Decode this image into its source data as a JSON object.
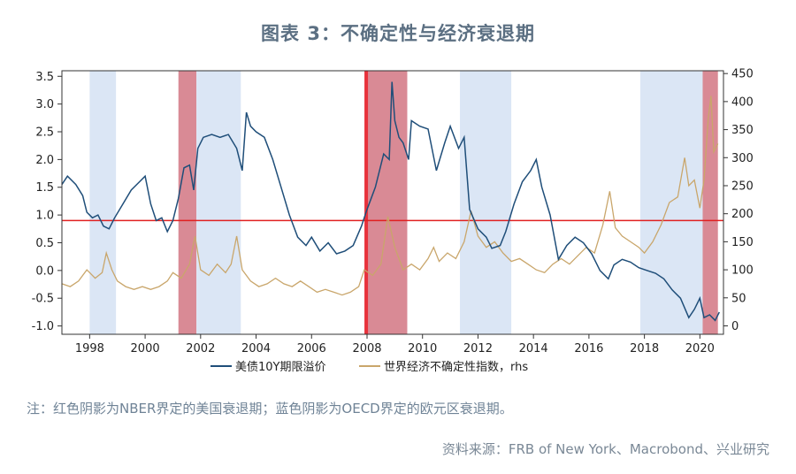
{
  "title": "图表 3：不确定性与经济衰退期",
  "note": "注：红色阴影为NBER界定的美国衰退期；蓝色阴影为OECD界定的欧元区衰退期。",
  "source": "资料来源：FRB of New York、Macrobond、兴业研究",
  "colors": {
    "spread": "#1f4e79",
    "uncertainty": "#c9a66b",
    "us_recession": "#d98a95",
    "euro_recession": "#dbe6f5",
    "reference_line": "#e02020"
  },
  "chart_data": {
    "type": "line",
    "x_range": [
      1997.0,
      2020.85
    ],
    "x_ticks": [
      1998,
      2000,
      2002,
      2004,
      2006,
      2008,
      2010,
      2012,
      2014,
      2016,
      2018,
      2020
    ],
    "y_left": {
      "range": [
        -1.15,
        3.6
      ],
      "ticks": [
        -1.0,
        -0.5,
        0.0,
        0.5,
        1.0,
        1.5,
        2.0,
        2.5,
        3.0,
        3.5
      ]
    },
    "y_right": {
      "range": [
        -15,
        455
      ],
      "ticks": [
        0,
        50,
        100,
        150,
        200,
        250,
        300,
        350,
        400,
        450
      ],
      "label": "rhs"
    },
    "horizontal_line": {
      "axis": "left",
      "value": 0.9
    },
    "shaded_periods": [
      {
        "type": "euro",
        "from": 1998.0,
        "to": 1998.95
      },
      {
        "type": "us",
        "from": 2001.2,
        "to": 2001.85
      },
      {
        "type": "euro",
        "from": 2001.85,
        "to": 2003.45
      },
      {
        "type": "us",
        "from": 2007.95,
        "to": 2009.45
      },
      {
        "type": "euro",
        "from": 2011.35,
        "to": 2013.2
      },
      {
        "type": "euro",
        "from": 2017.85,
        "to": 2020.1
      },
      {
        "type": "us",
        "from": 2020.1,
        "to": 2020.65
      }
    ],
    "series": [
      {
        "name": "美债10Y期限溢价",
        "axis": "left",
        "points": [
          [
            1997.0,
            1.55
          ],
          [
            1997.2,
            1.7
          ],
          [
            1997.5,
            1.55
          ],
          [
            1997.75,
            1.35
          ],
          [
            1997.9,
            1.05
          ],
          [
            1998.1,
            0.95
          ],
          [
            1998.3,
            1.0
          ],
          [
            1998.5,
            0.8
          ],
          [
            1998.7,
            0.75
          ],
          [
            1998.9,
            0.95
          ],
          [
            1999.2,
            1.2
          ],
          [
            1999.5,
            1.45
          ],
          [
            1999.8,
            1.6
          ],
          [
            2000.0,
            1.7
          ],
          [
            2000.2,
            1.2
          ],
          [
            2000.4,
            0.9
          ],
          [
            2000.6,
            0.95
          ],
          [
            2000.8,
            0.7
          ],
          [
            2001.0,
            0.9
          ],
          [
            2001.2,
            1.3
          ],
          [
            2001.4,
            1.85
          ],
          [
            2001.6,
            1.9
          ],
          [
            2001.75,
            1.45
          ],
          [
            2001.9,
            2.2
          ],
          [
            2002.1,
            2.4
          ],
          [
            2002.4,
            2.45
          ],
          [
            2002.7,
            2.4
          ],
          [
            2003.0,
            2.45
          ],
          [
            2003.3,
            2.2
          ],
          [
            2003.5,
            1.8
          ],
          [
            2003.65,
            2.85
          ],
          [
            2003.8,
            2.6
          ],
          [
            2004.0,
            2.5
          ],
          [
            2004.3,
            2.4
          ],
          [
            2004.6,
            2.0
          ],
          [
            2004.9,
            1.5
          ],
          [
            2005.2,
            1.0
          ],
          [
            2005.5,
            0.6
          ],
          [
            2005.8,
            0.45
          ],
          [
            2006.0,
            0.6
          ],
          [
            2006.3,
            0.35
          ],
          [
            2006.6,
            0.5
          ],
          [
            2006.9,
            0.3
          ],
          [
            2007.2,
            0.35
          ],
          [
            2007.5,
            0.45
          ],
          [
            2007.8,
            0.8
          ],
          [
            2008.0,
            1.1
          ],
          [
            2008.3,
            1.5
          ],
          [
            2008.6,
            2.1
          ],
          [
            2008.8,
            2.0
          ],
          [
            2008.9,
            3.4
          ],
          [
            2009.0,
            2.7
          ],
          [
            2009.15,
            2.4
          ],
          [
            2009.3,
            2.3
          ],
          [
            2009.5,
            2.0
          ],
          [
            2009.6,
            2.7
          ],
          [
            2009.9,
            2.6
          ],
          [
            2010.2,
            2.55
          ],
          [
            2010.5,
            1.8
          ],
          [
            2010.8,
            2.3
          ],
          [
            2011.0,
            2.6
          ],
          [
            2011.3,
            2.2
          ],
          [
            2011.5,
            2.4
          ],
          [
            2011.7,
            1.1
          ],
          [
            2012.0,
            0.75
          ],
          [
            2012.3,
            0.6
          ],
          [
            2012.5,
            0.4
          ],
          [
            2012.8,
            0.45
          ],
          [
            2013.0,
            0.7
          ],
          [
            2013.3,
            1.2
          ],
          [
            2013.6,
            1.6
          ],
          [
            2013.9,
            1.8
          ],
          [
            2014.1,
            2.0
          ],
          [
            2014.3,
            1.5
          ],
          [
            2014.6,
            1.0
          ],
          [
            2014.9,
            0.2
          ],
          [
            2015.2,
            0.45
          ],
          [
            2015.5,
            0.6
          ],
          [
            2015.8,
            0.5
          ],
          [
            2016.1,
            0.3
          ],
          [
            2016.4,
            0.0
          ],
          [
            2016.7,
            -0.15
          ],
          [
            2016.9,
            0.1
          ],
          [
            2017.2,
            0.2
          ],
          [
            2017.5,
            0.15
          ],
          [
            2017.8,
            0.05
          ],
          [
            2018.1,
            0.0
          ],
          [
            2018.4,
            -0.05
          ],
          [
            2018.7,
            -0.15
          ],
          [
            2019.0,
            -0.35
          ],
          [
            2019.3,
            -0.5
          ],
          [
            2019.6,
            -0.85
          ],
          [
            2019.8,
            -0.7
          ],
          [
            2020.0,
            -0.5
          ],
          [
            2020.15,
            -0.85
          ],
          [
            2020.35,
            -0.8
          ],
          [
            2020.55,
            -0.9
          ],
          [
            2020.7,
            -0.75
          ]
        ]
      },
      {
        "name": "世界经济不确定性指数，rhs",
        "axis": "right",
        "points": [
          [
            1997.0,
            75
          ],
          [
            1997.3,
            70
          ],
          [
            1997.6,
            80
          ],
          [
            1997.9,
            100
          ],
          [
            1998.2,
            85
          ],
          [
            1998.45,
            95
          ],
          [
            1998.6,
            130
          ],
          [
            1998.8,
            100
          ],
          [
            1999.0,
            80
          ],
          [
            1999.3,
            70
          ],
          [
            1999.6,
            65
          ],
          [
            1999.9,
            70
          ],
          [
            2000.2,
            65
          ],
          [
            2000.5,
            70
          ],
          [
            2000.8,
            80
          ],
          [
            2001.0,
            95
          ],
          [
            2001.3,
            85
          ],
          [
            2001.6,
            110
          ],
          [
            2001.8,
            160
          ],
          [
            2002.0,
            100
          ],
          [
            2002.3,
            90
          ],
          [
            2002.6,
            110
          ],
          [
            2002.9,
            95
          ],
          [
            2003.1,
            110
          ],
          [
            2003.3,
            160
          ],
          [
            2003.5,
            100
          ],
          [
            2003.8,
            80
          ],
          [
            2004.1,
            70
          ],
          [
            2004.4,
            75
          ],
          [
            2004.7,
            85
          ],
          [
            2005.0,
            75
          ],
          [
            2005.3,
            70
          ],
          [
            2005.6,
            80
          ],
          [
            2005.9,
            70
          ],
          [
            2006.2,
            60
          ],
          [
            2006.5,
            65
          ],
          [
            2006.8,
            60
          ],
          [
            2007.1,
            55
          ],
          [
            2007.4,
            60
          ],
          [
            2007.7,
            70
          ],
          [
            2007.9,
            100
          ],
          [
            2008.2,
            90
          ],
          [
            2008.5,
            110
          ],
          [
            2008.75,
            195
          ],
          [
            2009.0,
            140
          ],
          [
            2009.3,
            100
          ],
          [
            2009.6,
            110
          ],
          [
            2009.9,
            100
          ],
          [
            2010.2,
            120
          ],
          [
            2010.4,
            140
          ],
          [
            2010.6,
            115
          ],
          [
            2010.9,
            130
          ],
          [
            2011.2,
            120
          ],
          [
            2011.5,
            150
          ],
          [
            2011.75,
            205
          ],
          [
            2012.0,
            160
          ],
          [
            2012.3,
            140
          ],
          [
            2012.6,
            150
          ],
          [
            2012.9,
            130
          ],
          [
            2013.2,
            115
          ],
          [
            2013.5,
            120
          ],
          [
            2013.8,
            110
          ],
          [
            2014.1,
            100
          ],
          [
            2014.4,
            95
          ],
          [
            2014.7,
            110
          ],
          [
            2015.0,
            120
          ],
          [
            2015.3,
            110
          ],
          [
            2015.6,
            125
          ],
          [
            2015.9,
            140
          ],
          [
            2016.2,
            130
          ],
          [
            2016.5,
            180
          ],
          [
            2016.75,
            240
          ],
          [
            2016.95,
            175
          ],
          [
            2017.2,
            160
          ],
          [
            2017.5,
            150
          ],
          [
            2017.8,
            140
          ],
          [
            2018.0,
            130
          ],
          [
            2018.3,
            150
          ],
          [
            2018.6,
            180
          ],
          [
            2018.9,
            220
          ],
          [
            2019.2,
            230
          ],
          [
            2019.45,
            300
          ],
          [
            2019.6,
            250
          ],
          [
            2019.8,
            260
          ],
          [
            2020.0,
            210
          ],
          [
            2020.15,
            260
          ],
          [
            2020.3,
            370
          ],
          [
            2020.4,
            410
          ],
          [
            2020.5,
            310
          ],
          [
            2020.65,
            325
          ]
        ]
      }
    ]
  }
}
